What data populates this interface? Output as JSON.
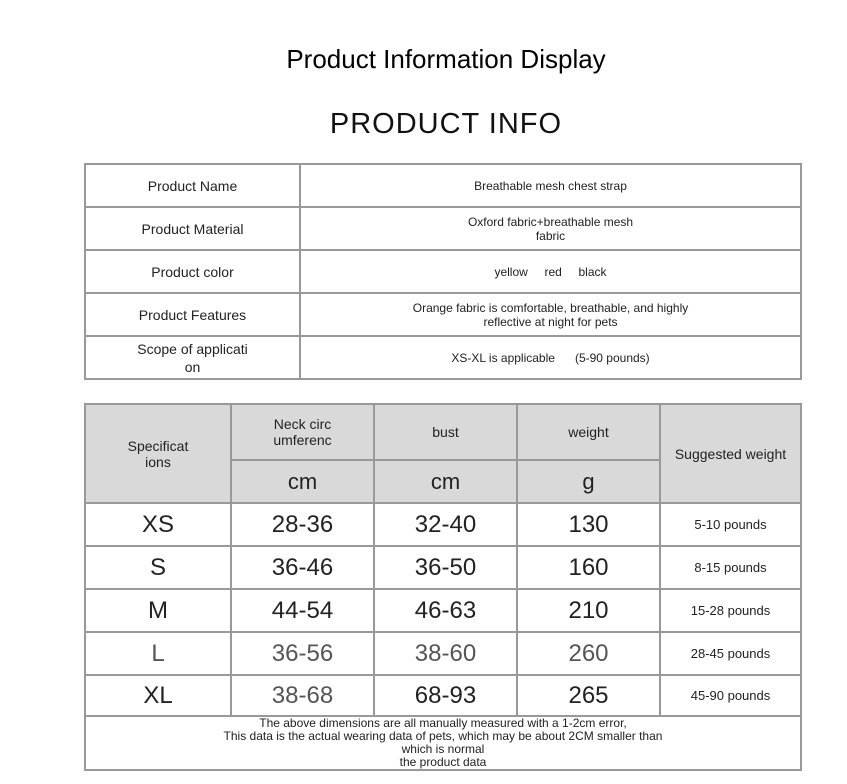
{
  "title": "Product Information Display",
  "subtitle": "PRODUCT INFO",
  "info": [
    {
      "label": "Product Name",
      "value": "Breathable mesh chest strap"
    },
    {
      "label": "Product Material",
      "value": "Oxford fabric+breathable mesh fabric"
    },
    {
      "label": "Product color",
      "value": "yellow     red     black"
    },
    {
      "label": "Product Features",
      "value": "Orange fabric is comfortable, breathable, and highly reflective at night for pets"
    },
    {
      "label": "Scope of applicati on",
      "value": "XS-XL is applicable      (5-90 pounds)"
    }
  ],
  "size_table": {
    "headers": {
      "spec": "Specificat ions",
      "neck": "Neck circ umferenc",
      "bust": "bust",
      "weight": "weight",
      "suggested": "Suggested weight",
      "neck_unit": "cm",
      "bust_unit": "cm",
      "weight_unit": "g"
    },
    "rows": [
      [
        "XS",
        "28-36",
        "32-40",
        "130",
        "5-10 pounds"
      ],
      [
        "S",
        "36-46",
        "36-50",
        "160",
        "8-15 pounds"
      ],
      [
        "M",
        "44-54",
        "46-63",
        "210",
        "15-28 pounds"
      ],
      [
        "L",
        "36-56",
        "38-60",
        "260",
        "28-45 pounds"
      ],
      [
        "XL",
        "38-68",
        "68-93",
        "265",
        "45-90 pounds"
      ]
    ],
    "footer": [
      "The above dimensions are all manually measured with a 1-2cm error,",
      "This data is the actual wearing data of pets, which may be about 2CM smaller than",
      "which is normal",
      "the product data"
    ]
  }
}
